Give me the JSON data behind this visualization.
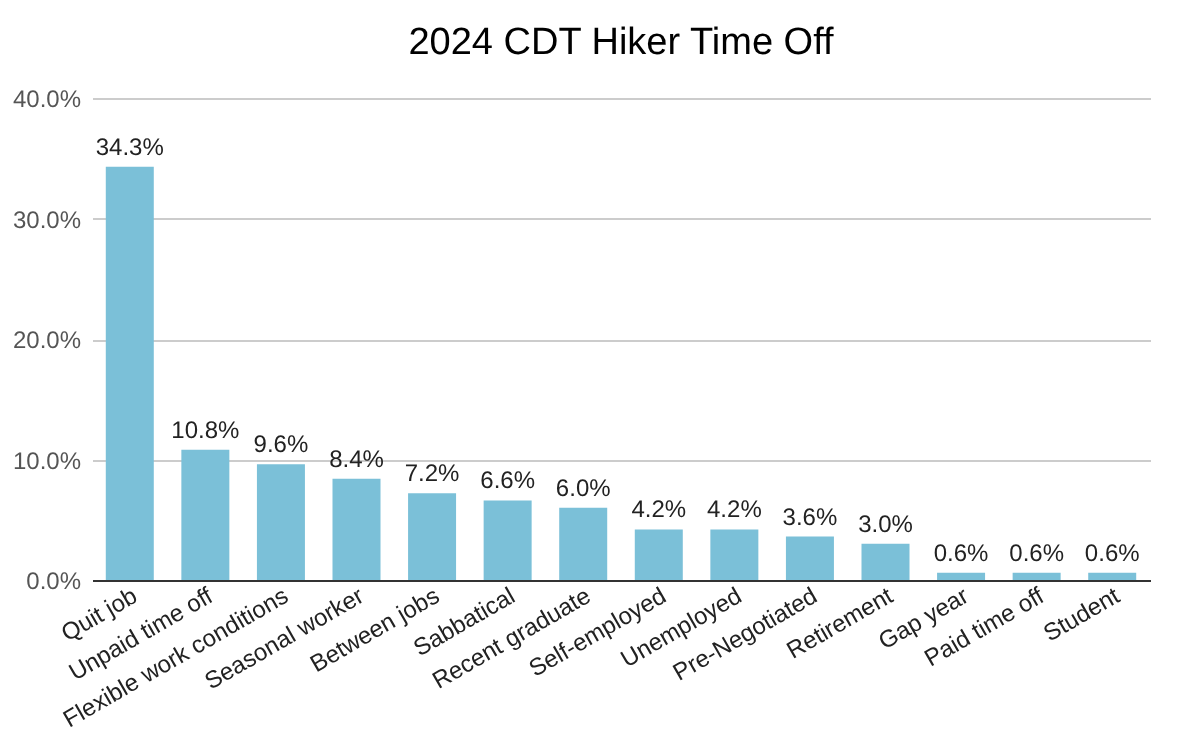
{
  "chart_data": {
    "type": "bar",
    "title": "2024 CDT Hiker Time Off",
    "categories": [
      "Quit job",
      "Unpaid time off",
      "Flexible work conditions",
      "Seasonal worker",
      "Between jobs",
      "Sabbatical",
      "Recent graduate",
      "Self-employed",
      "Unemployed",
      "Pre-Negotiated",
      "Retirement",
      "Gap year",
      "Paid time off",
      "Student"
    ],
    "values": [
      34.3,
      10.8,
      9.6,
      8.4,
      7.2,
      6.6,
      6.0,
      4.2,
      4.2,
      3.6,
      3.0,
      0.6,
      0.6,
      0.6
    ],
    "value_labels": [
      "34.3%",
      "10.8%",
      "9.6%",
      "8.4%",
      "7.2%",
      "6.6%",
      "6.0%",
      "4.2%",
      "4.2%",
      "3.6%",
      "3.0%",
      "0.6%",
      "0.6%",
      "0.6%"
    ],
    "color": "#7bc0d8",
    "ylim": [
      0,
      40
    ],
    "yticks": [
      {
        "value": 0,
        "label": "0.0%"
      },
      {
        "value": 10,
        "label": "10.0%"
      },
      {
        "value": 20,
        "label": "20.0%"
      },
      {
        "value": 30,
        "label": "30.0%"
      },
      {
        "value": 40,
        "label": "40.0%"
      }
    ],
    "grid": "y"
  }
}
